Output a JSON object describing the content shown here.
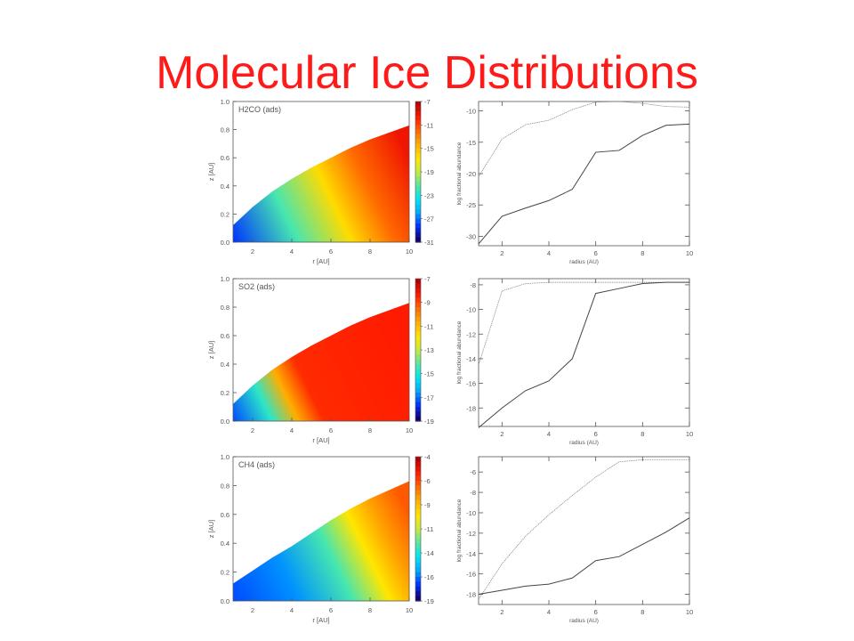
{
  "title": "Molecular Ice Distributions",
  "colors": {
    "title": "#ff1a1a",
    "axis": "#555555",
    "line": "#444444"
  },
  "colormap": [
    "#10006e",
    "#0032ff",
    "#00aaff",
    "#00e6f0",
    "#57e6a0",
    "#c8ea3c",
    "#ffe600",
    "#ffae00",
    "#ff6a00",
    "#ff1a00",
    "#b40000"
  ],
  "chart_data": [
    {
      "type": "heatmap",
      "label": "H2CO (ads)",
      "xlabel": "r [AU]",
      "ylabel": "z [AU]",
      "xlim": [
        1,
        10
      ],
      "ylim": [
        0,
        1.0
      ],
      "xticks": [
        "2",
        "4",
        "6",
        "8",
        "10"
      ],
      "yticks": [
        "0.0",
        "0.2",
        "0.4",
        "0.6",
        "0.8",
        "1.0"
      ],
      "colorbar_ticks": [
        "-7",
        "-11",
        "-15",
        "-19",
        "-23",
        "-27",
        "-31"
      ],
      "colorbar_range": [
        -31,
        -7
      ],
      "disk_surface": [
        [
          1.0,
          0.12
        ],
        [
          2,
          0.25
        ],
        [
          3,
          0.36
        ],
        [
          4,
          0.45
        ],
        [
          5,
          0.53
        ],
        [
          6,
          0.6
        ],
        [
          7,
          0.67
        ],
        [
          8,
          0.73
        ],
        [
          9,
          0.78
        ],
        [
          10,
          0.83
        ]
      ],
      "gradient_stops": [
        [
          0,
          0.1
        ],
        [
          0.3,
          0.38
        ],
        [
          0.55,
          0.62
        ],
        [
          0.75,
          0.8
        ],
        [
          1,
          0.92
        ]
      ]
    },
    {
      "type": "line",
      "xlabel": "radius (AU)",
      "ylabel": "log fractional abundance",
      "xlim": [
        1,
        10
      ],
      "ylim": [
        -31.5,
        -8.5
      ],
      "xticks": [
        "2",
        "4",
        "6",
        "8",
        "10"
      ],
      "yticks": [
        "-10",
        "-15",
        "-20",
        "-25",
        "-30"
      ],
      "series": [
        {
          "style": "dotted",
          "x": [
            1,
            2,
            3,
            4,
            5,
            6,
            7,
            8,
            9,
            10
          ],
          "values": [
            -20.5,
            -14.5,
            -12.2,
            -11.5,
            -9.8,
            -8.6,
            -8.5,
            -8.8,
            -9.3,
            -9.4
          ]
        },
        {
          "style": "solid",
          "x": [
            1,
            2,
            3,
            4,
            5,
            6,
            7,
            8,
            9,
            10
          ],
          "values": [
            -31.2,
            -26.8,
            -25.5,
            -24.3,
            -22.5,
            -16.6,
            -16.3,
            -13.9,
            -12.3,
            -12.1
          ]
        }
      ]
    },
    {
      "type": "heatmap",
      "label": "SO2 (ads)",
      "xlabel": "r [AU]",
      "ylabel": "z [AU]",
      "xlim": [
        1,
        10
      ],
      "ylim": [
        0,
        1.0
      ],
      "xticks": [
        "2",
        "4",
        "6",
        "8",
        "10"
      ],
      "yticks": [
        "0.0",
        "0.2",
        "0.4",
        "0.6",
        "0.8",
        "1.0"
      ],
      "colorbar_ticks": [
        "-7",
        "-9",
        "-11",
        "-13",
        "-15",
        "-17",
        "-19"
      ],
      "colorbar_range": [
        -19,
        -7
      ],
      "disk_surface": [
        [
          1.0,
          0.12
        ],
        [
          2,
          0.25
        ],
        [
          3,
          0.36
        ],
        [
          4,
          0.45
        ],
        [
          5,
          0.53
        ],
        [
          6,
          0.6
        ],
        [
          7,
          0.67
        ],
        [
          8,
          0.73
        ],
        [
          9,
          0.78
        ],
        [
          10,
          0.83
        ]
      ],
      "gradient_stops": [
        [
          0,
          0.12
        ],
        [
          0.18,
          0.35
        ],
        [
          0.3,
          0.7
        ],
        [
          0.42,
          0.88
        ],
        [
          1,
          0.9
        ]
      ]
    },
    {
      "type": "line",
      "xlabel": "radius (AU)",
      "ylabel": "log fractional abundance",
      "xlim": [
        1,
        10
      ],
      "ylim": [
        -19.5,
        -7.5
      ],
      "xticks": [
        "2",
        "4",
        "6",
        "8",
        "10"
      ],
      "yticks": [
        "-8",
        "-10",
        "-12",
        "-14",
        "-16",
        "-18"
      ],
      "series": [
        {
          "style": "dotted",
          "x": [
            1,
            2,
            3,
            4,
            5,
            6,
            7,
            8,
            9,
            10
          ],
          "values": [
            -14.5,
            -8.5,
            -7.9,
            -7.8,
            -7.8,
            -7.8,
            -7.8,
            -7.8,
            -7.8,
            -7.8
          ]
        },
        {
          "style": "solid",
          "x": [
            1,
            2,
            3,
            4,
            5,
            6,
            7,
            8,
            9,
            10
          ],
          "values": [
            -19.6,
            -18.0,
            -16.6,
            -15.8,
            -14.0,
            -8.7,
            -8.3,
            -7.9,
            -7.8,
            -7.8
          ]
        }
      ]
    },
    {
      "type": "heatmap",
      "label": "CH4 (ads)",
      "xlabel": "r [AU]",
      "ylabel": "z [AU]",
      "xlim": [
        1,
        10
      ],
      "ylim": [
        0,
        1.0
      ],
      "xticks": [
        "2",
        "4",
        "6",
        "8",
        "10"
      ],
      "yticks": [
        "0.0",
        "0.2",
        "0.4",
        "0.6",
        "0.8",
        "1.0"
      ],
      "colorbar_ticks": [
        "-4",
        "-6",
        "-9",
        "-11",
        "-14",
        "-16",
        "-19"
      ],
      "colorbar_range": [
        -19,
        -4
      ],
      "disk_surface": [
        [
          1.0,
          0.12
        ],
        [
          2,
          0.21
        ],
        [
          3,
          0.3
        ],
        [
          4,
          0.38
        ],
        [
          5,
          0.47
        ],
        [
          6,
          0.56
        ],
        [
          7,
          0.64
        ],
        [
          8,
          0.71
        ],
        [
          9,
          0.77
        ],
        [
          10,
          0.83
        ]
      ],
      "gradient_stops": [
        [
          0,
          0.12
        ],
        [
          0.3,
          0.18
        ],
        [
          0.55,
          0.38
        ],
        [
          0.72,
          0.6
        ],
        [
          0.85,
          0.72
        ],
        [
          1,
          0.82
        ]
      ]
    },
    {
      "type": "line",
      "xlabel": "radius (AU)",
      "ylabel": "log fractional abundance",
      "xlim": [
        1,
        10
      ],
      "ylim": [
        -19,
        -4.5
      ],
      "xticks": [
        "2",
        "4",
        "6",
        "8",
        "10"
      ],
      "yticks": [
        "-6",
        "-8",
        "-10",
        "-12",
        "-14",
        "-16",
        "-18"
      ],
      "series": [
        {
          "style": "dotted",
          "x": [
            1,
            2,
            3,
            4,
            5,
            6,
            7,
            8,
            9,
            10
          ],
          "values": [
            -18.5,
            -15.0,
            -12.3,
            -10.2,
            -8.3,
            -6.5,
            -5.0,
            -4.8,
            -4.8,
            -4.8
          ]
        },
        {
          "style": "solid",
          "x": [
            1,
            2,
            3,
            4,
            5,
            6,
            7,
            8,
            9,
            10
          ],
          "values": [
            -18.0,
            -17.6,
            -17.2,
            -17.0,
            -16.4,
            -14.7,
            -14.3,
            -13.1,
            -11.9,
            -10.5
          ]
        }
      ]
    }
  ]
}
